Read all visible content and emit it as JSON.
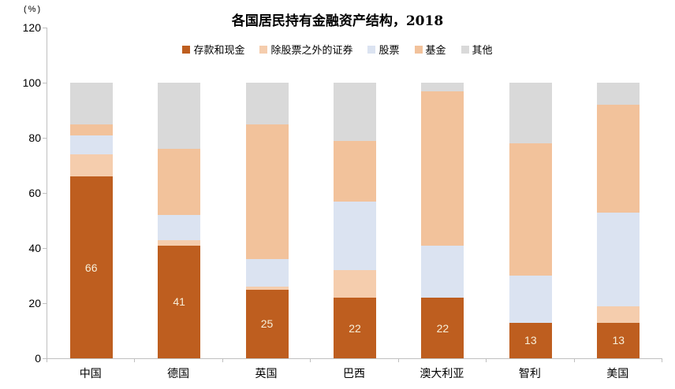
{
  "header": {
    "unit_label": "(%)"
  },
  "chart_data": {
    "type": "bar",
    "stacked": true,
    "title": "各国居民持有金融资产结构，2018",
    "unit": "%",
    "categories": [
      "中国",
      "德国",
      "英国",
      "巴西",
      "澳大利亚",
      "智利",
      "美国"
    ],
    "series": [
      {
        "name": "存款和现金",
        "color": "#BE5E1F",
        "values": [
          66,
          41,
          25,
          22,
          22,
          13,
          13
        ]
      },
      {
        "name": "除股票之外的证券",
        "color": "#F5CDAD",
        "values": [
          8,
          2,
          1,
          10,
          0,
          0,
          6
        ]
      },
      {
        "name": "股票",
        "color": "#DBE3F1",
        "values": [
          7,
          9,
          10,
          25,
          19,
          17,
          34
        ]
      },
      {
        "name": "基金",
        "color": "#F2C29B",
        "values": [
          4,
          24,
          49,
          22,
          56,
          48,
          39
        ]
      },
      {
        "name": "其他",
        "color": "#D9D9D9",
        "values": [
          15,
          24,
          15,
          21,
          3,
          22,
          8
        ]
      }
    ],
    "value_labels": {
      "series": "存款和现金",
      "values": [
        66,
        41,
        25,
        22,
        22,
        13,
        13
      ],
      "color": "#F7EFD9"
    },
    "y_axis": {
      "min": 0,
      "max": 120,
      "step": 20,
      "ticks": [
        0,
        20,
        40,
        60,
        80,
        100,
        120
      ]
    },
    "legend_position": "top",
    "grid": false
  },
  "colors": {
    "axis": "#BFBFBF",
    "text": "#000000",
    "bar_value_label": "#F7EFD9"
  }
}
